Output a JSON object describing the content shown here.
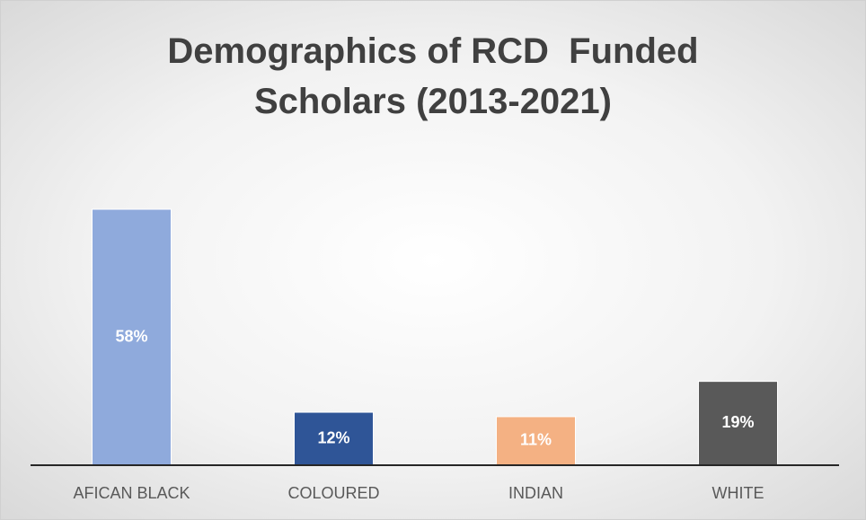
{
  "chart_data": {
    "type": "bar",
    "title": "Demographics of RCD  Funded Scholars (2013-2021)",
    "categories": [
      "AFICAN BLACK",
      "COLOURED",
      "INDIAN",
      "WHITE"
    ],
    "values": [
      58,
      12,
      11,
      19
    ],
    "value_labels": [
      "58%",
      "12%",
      "11%",
      "19%"
    ],
    "colors": [
      "#8faadc",
      "#2f5597",
      "#f4b183",
      "#595959"
    ]
  }
}
